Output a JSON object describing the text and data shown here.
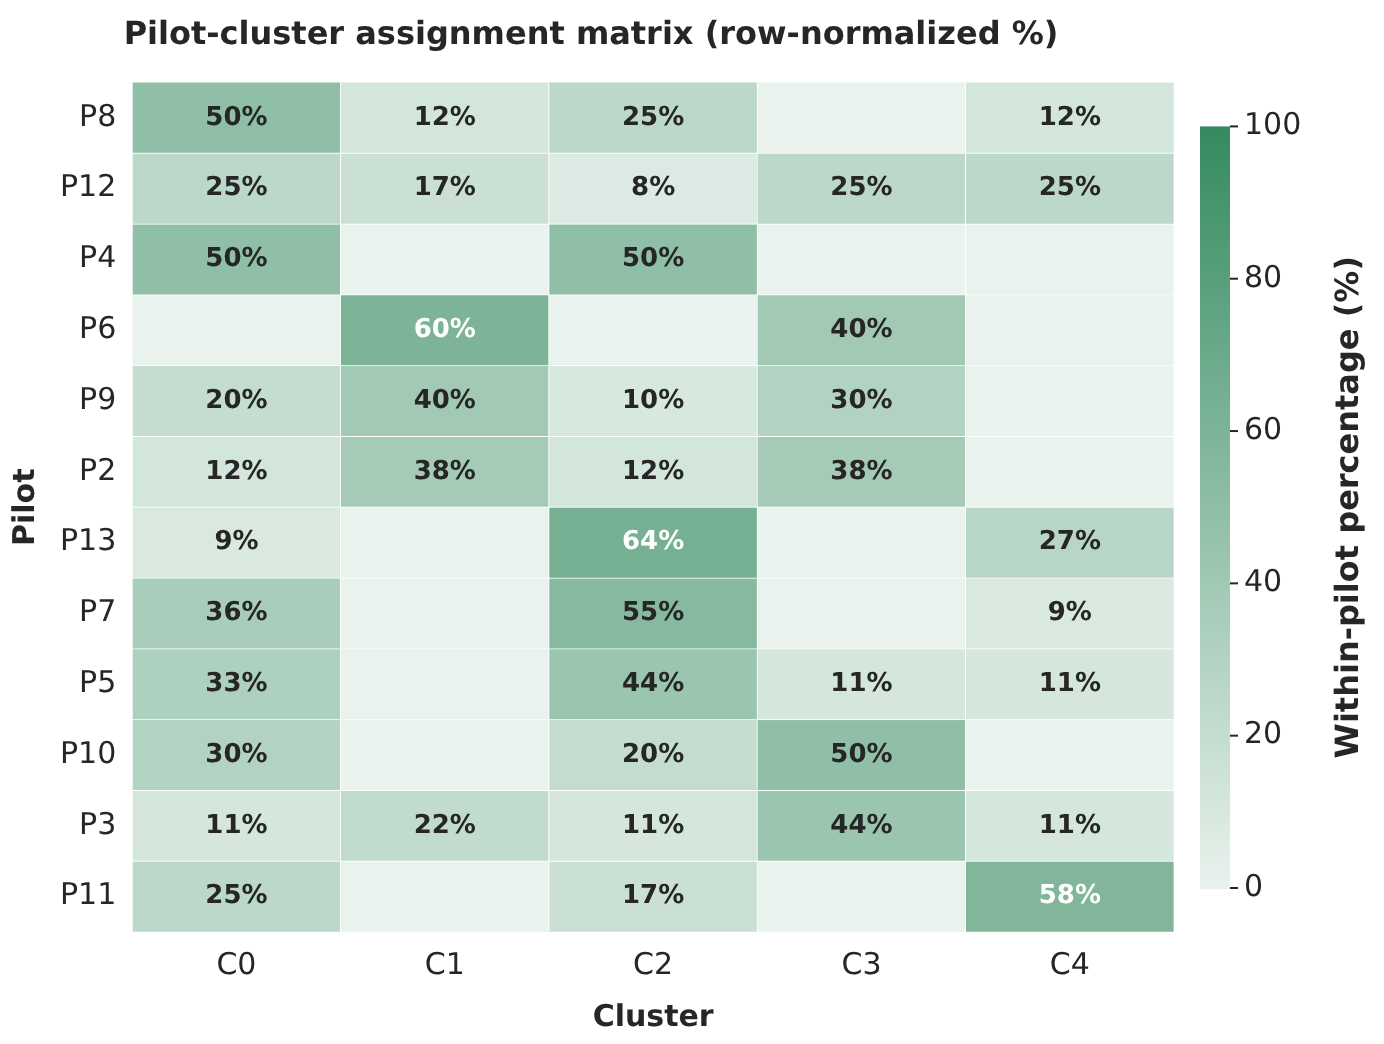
{
  "chart_data": {
    "type": "heatmap",
    "title": "Pilot-cluster assignment matrix (row-normalized %)",
    "xlabel": "Cluster",
    "ylabel": "Pilot",
    "clabel": "Within-pilot percentage (%)",
    "categories": [
      "C0",
      "C1",
      "C2",
      "C3",
      "C4"
    ],
    "y_categories": [
      "P8",
      "P12",
      "P4",
      "P6",
      "P9",
      "P2",
      "P13",
      "P7",
      "P5",
      "P10",
      "P3",
      "P11"
    ],
    "cells": [
      [
        50,
        12,
        25,
        0,
        12
      ],
      [
        25,
        17,
        8,
        25,
        25
      ],
      [
        50,
        0,
        50,
        0,
        0
      ],
      [
        0,
        60,
        0,
        40,
        0
      ],
      [
        20,
        40,
        10,
        30,
        0
      ],
      [
        12,
        38,
        12,
        38,
        0
      ],
      [
        9,
        0,
        64,
        0,
        27
      ],
      [
        36,
        0,
        55,
        0,
        9
      ],
      [
        33,
        0,
        44,
        11,
        11
      ],
      [
        30,
        0,
        20,
        50,
        0
      ],
      [
        11,
        22,
        11,
        44,
        11
      ],
      [
        25,
        0,
        17,
        0,
        58
      ]
    ],
    "cell_labels": [
      [
        "50%",
        "12%",
        "25%",
        null,
        "12%"
      ],
      [
        "25%",
        "17%",
        "8%",
        "25%",
        "25%"
      ],
      [
        "50%",
        null,
        "50%",
        null,
        null
      ],
      [
        null,
        "60%",
        null,
        "40%",
        null
      ],
      [
        "20%",
        "40%",
        "10%",
        "30%",
        null
      ],
      [
        "12%",
        "38%",
        "12%",
        "38%",
        null
      ],
      [
        "9%",
        null,
        "64%",
        null,
        "27%"
      ],
      [
        "36%",
        null,
        "55%",
        null,
        "9%"
      ],
      [
        "33%",
        null,
        "44%",
        "11%",
        "11%"
      ],
      [
        "30%",
        null,
        "20%",
        "50%",
        null
      ],
      [
        "11%",
        "22%",
        "11%",
        "44%",
        "11%"
      ],
      [
        "25%",
        null,
        "17%",
        null,
        "58%"
      ]
    ],
    "clim": [
      0,
      100
    ],
    "cticks": [
      0,
      20,
      40,
      60,
      80,
      100
    ]
  }
}
